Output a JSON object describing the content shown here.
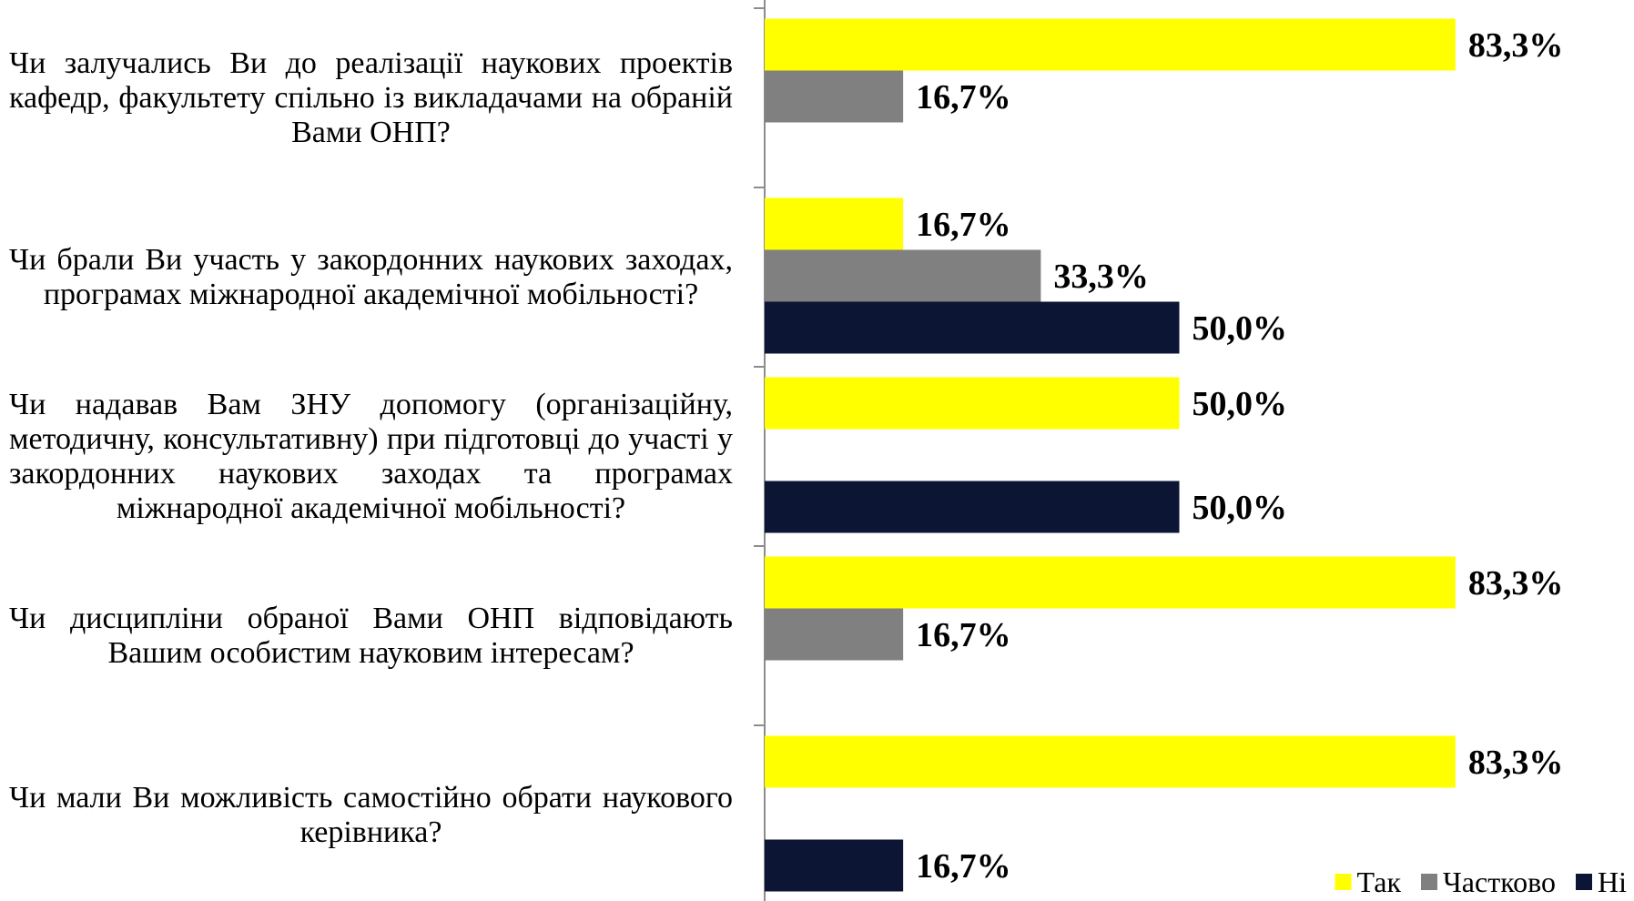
{
  "chart_data": {
    "type": "bar",
    "orientation": "horizontal",
    "categories": [
      "Чи залучались Ви до реалізації наукових проектів кафедр, факультету спільно із викладачами на обраній Вами ОНП?",
      "Чи брали Ви участь у закордонних наукових заходах, програмах міжнародної академічної мобільності?",
      "Чи надавав Вам ЗНУ допомогу (організаційну, методичну, консультативну) при підготовці до участі у закордонних наукових заходах та програмах міжнародної академічної мобільності?",
      "Чи дисципліни обраної Вами ОНП відповідають Вашим особистим науковим інтересам?",
      "Чи мали Ви можливість самостійно обрати наукового керівника?"
    ],
    "series": [
      {
        "name": "Так",
        "color": "#ffff00",
        "values": [
          83.3,
          16.7,
          50.0,
          83.3,
          83.3
        ],
        "value_labels": [
          "83,3%",
          "16,7%",
          "50,0%",
          "83,3%",
          "83,3%"
        ]
      },
      {
        "name": "Частково",
        "color": "#808080",
        "values": [
          16.7,
          33.3,
          null,
          16.7,
          null
        ],
        "value_labels": [
          "16,7%",
          "33,3%",
          null,
          "16,7%",
          null
        ]
      },
      {
        "name": "Ні",
        "color": "#0c1533",
        "values": [
          null,
          50.0,
          50.0,
          null,
          16.7
        ],
        "value_labels": [
          null,
          "50,0%",
          "50,0%",
          null,
          "16,7%"
        ]
      }
    ],
    "xlim": [
      0,
      100
    ],
    "legend": "bottom-right"
  }
}
